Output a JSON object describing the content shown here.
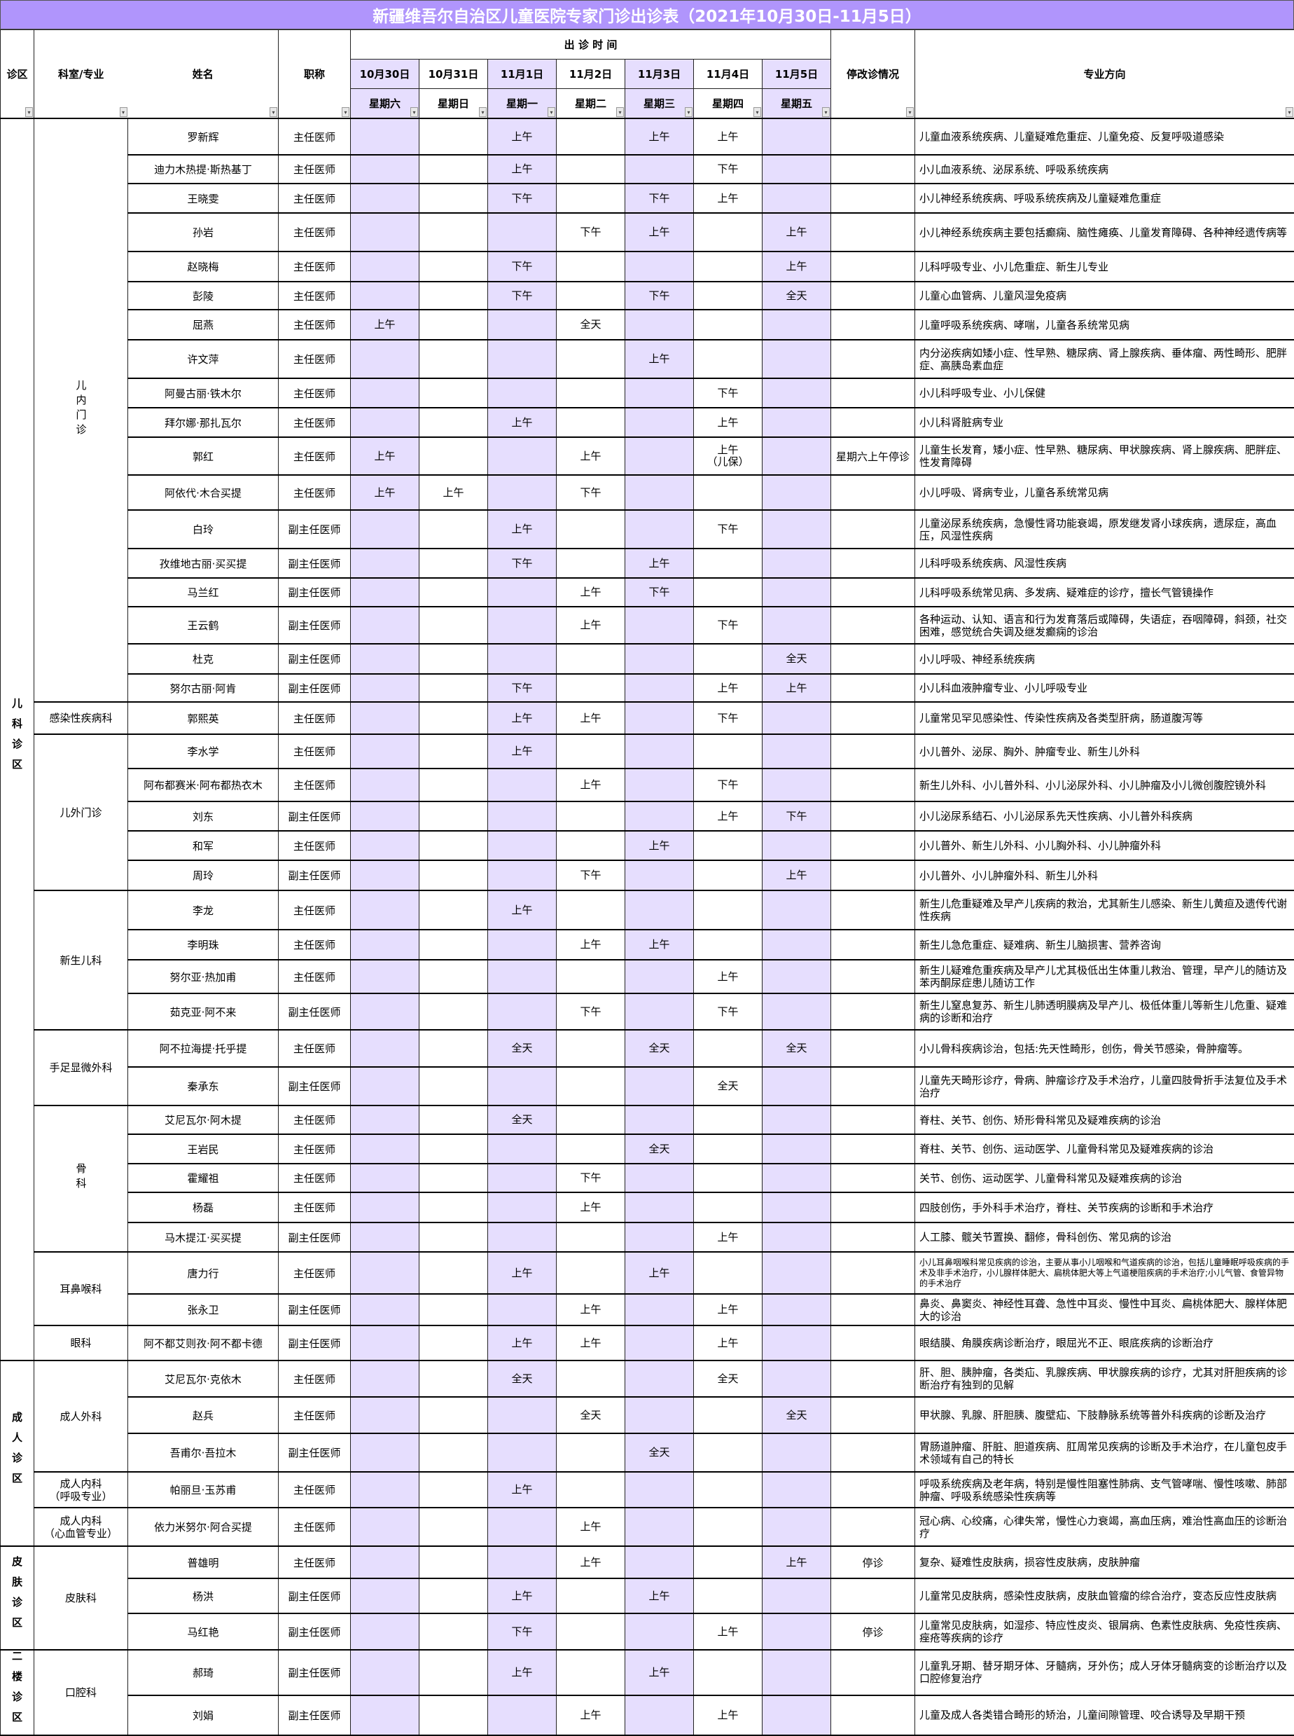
{
  "title": "新疆维吾尔自治区儿童医院专家门诊出诊表（2021年10月30日-11月5日）",
  "colors": {
    "title_bg": "#b095fc",
    "highlight_column": "#e6defe"
  },
  "header": {
    "zone": "诊区",
    "department": "科室/专业",
    "name": "姓名",
    "title": "职称",
    "visit_time": "出 诊 时 间",
    "dates": [
      "10月30日",
      "10月31日",
      "11月1日",
      "11月2日",
      "11月3日",
      "11月4日",
      "11月5日"
    ],
    "weekdays": [
      "星期六",
      "星期日",
      "星期一",
      "星期二",
      "星期三",
      "星期四",
      "星期五"
    ],
    "change": "停改诊情况",
    "specialty": "专业方向",
    "filter_icon": "dropdown-filter-icon"
  },
  "zones": [
    {
      "name": "儿科诊区",
      "departments": [
        {
          "name": "儿内门诊",
          "doctors": [
            {
              "name": "罗新辉",
              "title": "主任医师",
              "schedule": [
                "",
                "",
                "上午",
                "",
                "上午",
                "上午",
                ""
              ],
              "change": "",
              "specialty": "儿童血液系统疾病、儿童疑难危重症、儿童免疫、反复呼吸道感染"
            },
            {
              "name": "迪力木热提·斯热基丁",
              "title": "主任医师",
              "schedule": [
                "",
                "",
                "上午",
                "",
                "",
                "下午",
                ""
              ],
              "change": "",
              "specialty": "小儿血液系统、泌尿系统、呼吸系统疾病"
            },
            {
              "name": "王晓雯",
              "title": "主任医师",
              "schedule": [
                "",
                "",
                "下午",
                "",
                "下午",
                "上午",
                ""
              ],
              "change": "",
              "specialty": "小儿神经系统疾病、呼吸系统疾病及儿童疑难危重症"
            },
            {
              "name": "孙岩",
              "title": "主任医师",
              "schedule": [
                "",
                "",
                "",
                "下午",
                "上午",
                "",
                "上午"
              ],
              "change": "",
              "specialty": "小儿神经系统疾病主要包括癫痫、脑性瘫痪、儿童发育障碍、各种神经遗传病等"
            },
            {
              "name": "赵晓梅",
              "title": "主任医师",
              "schedule": [
                "",
                "",
                "下午",
                "",
                "",
                "",
                "上午"
              ],
              "change": "",
              "specialty": "儿科呼吸专业、小儿危重症、新生儿专业"
            },
            {
              "name": "彭陵",
              "title": "主任医师",
              "schedule": [
                "",
                "",
                "下午",
                "",
                "下午",
                "",
                "全天"
              ],
              "change": "",
              "specialty": "儿童心血管病、儿童风湿免疫病"
            },
            {
              "name": "屈燕",
              "title": "主任医师",
              "schedule": [
                "上午",
                "",
                "",
                "全天",
                "",
                "",
                ""
              ],
              "change": "",
              "specialty": "儿童呼吸系统疾病、哮喘，儿童各系统常见病"
            },
            {
              "name": "许文萍",
              "title": "主任医师",
              "schedule": [
                "",
                "",
                "",
                "",
                "上午",
                "",
                ""
              ],
              "change": "",
              "specialty": "内分泌疾病如矮小症、性早熟、糖尿病、肾上腺疾病、垂体瘤、两性畸形、肥胖症、高胰岛素血症"
            },
            {
              "name": "阿曼古丽·铁木尔",
              "title": "主任医师",
              "schedule": [
                "",
                "",
                "",
                "",
                "",
                "下午",
                ""
              ],
              "change": "",
              "specialty": "小儿科呼吸专业、小儿保健"
            },
            {
              "name": "拜尔娜·那扎瓦尔",
              "title": "主任医师",
              "schedule": [
                "",
                "",
                "上午",
                "",
                "",
                "上午",
                ""
              ],
              "change": "",
              "specialty": "小儿科肾脏病专业"
            },
            {
              "name": "郭红",
              "title": "主任医师",
              "schedule": [
                "上午",
                "",
                "",
                "上午",
                "",
                "上午\n（儿保）",
                ""
              ],
              "change": "星期六上午停诊",
              "specialty": "儿童生长发育，矮小症、性早熟、糖尿病、甲状腺疾病、肾上腺疾病、肥胖症、性发育障碍"
            },
            {
              "name": "阿依代·木合买提",
              "title": "主任医师",
              "schedule": [
                "上午",
                "上午",
                "",
                "下午",
                "",
                "",
                ""
              ],
              "change": "",
              "specialty": "小儿呼吸、肾病专业，儿童各系统常见病"
            },
            {
              "name": "白玲",
              "title": "副主任医师",
              "schedule": [
                "",
                "",
                "上午",
                "",
                "",
                "下午",
                ""
              ],
              "change": "",
              "specialty": "儿童泌尿系统疾病，急慢性肾功能衰竭，原发继发肾小球疾病，遗尿症，高血压，风湿性疾病"
            },
            {
              "name": "孜维地古丽·买买提",
              "title": "副主任医师",
              "schedule": [
                "",
                "",
                "下午",
                "",
                "上午",
                "",
                ""
              ],
              "change": "",
              "specialty": "儿科呼吸系统疾病、风湿性疾病"
            },
            {
              "name": "马兰红",
              "title": "副主任医师",
              "schedule": [
                "",
                "",
                "",
                "上午",
                "下午",
                "",
                ""
              ],
              "change": "",
              "specialty": "儿科呼吸系统常见病、多发病、疑难症的诊疗，擅长气管镜操作"
            },
            {
              "name": "王云鹤",
              "title": "副主任医师",
              "schedule": [
                "",
                "",
                "",
                "上午",
                "",
                "下午",
                ""
              ],
              "change": "",
              "specialty": "各种运动、认知、语言和行为发育落后或障碍，失语症，吞咽障碍，斜颈，社交困难，感觉统合失调及继发癫痫的诊治"
            },
            {
              "name": "杜克",
              "title": "副主任医师",
              "schedule": [
                "",
                "",
                "",
                "",
                "",
                "",
                "全天"
              ],
              "change": "",
              "specialty": "小儿呼吸、神经系统疾病"
            },
            {
              "name": "努尔古丽·阿肯",
              "title": "副主任医师",
              "schedule": [
                "",
                "",
                "下午",
                "",
                "",
                "上午",
                "上午"
              ],
              "change": "",
              "specialty": "小儿科血液肿瘤专业、小儿呼吸专业"
            }
          ]
        },
        {
          "name": "感染性疾病科",
          "doctors": [
            {
              "name": "郭熙英",
              "title": "主任医师",
              "schedule": [
                "",
                "",
                "上午",
                "上午",
                "",
                "下午",
                ""
              ],
              "change": "",
              "specialty": "儿童常见罕见感染性、传染性疾病及各类型肝病，肠道腹泻等"
            }
          ]
        },
        {
          "name": "儿外门诊",
          "doctors": [
            {
              "name": "李水学",
              "title": "主任医师",
              "schedule": [
                "",
                "",
                "上午",
                "",
                "",
                "",
                ""
              ],
              "change": "",
              "specialty": "小儿普外、泌尿、胸外、肿瘤专业、新生儿外科"
            },
            {
              "name": "阿布都赛米·阿布都热衣木",
              "title": "主任医师",
              "schedule": [
                "",
                "",
                "",
                "上午",
                "",
                "下午",
                ""
              ],
              "change": "",
              "specialty": "新生儿外科、小儿普外科、小儿泌尿外科、小儿肿瘤及小儿微创腹腔镜外科"
            },
            {
              "name": "刘东",
              "title": "副主任医师",
              "schedule": [
                "",
                "",
                "",
                "",
                "",
                "上午",
                "下午"
              ],
              "change": "",
              "specialty": "小儿泌尿系结石、小儿泌尿系先天性疾病、小儿普外科疾病"
            },
            {
              "name": "和军",
              "title": "主任医师",
              "schedule": [
                "",
                "",
                "",
                "",
                "上午",
                "",
                ""
              ],
              "change": "",
              "specialty": "小儿普外、新生儿外科、小儿胸外科、小儿肿瘤外科"
            },
            {
              "name": "周玲",
              "title": "副主任医师",
              "schedule": [
                "",
                "",
                "",
                "下午",
                "",
                "",
                "上午"
              ],
              "change": "",
              "specialty": "小儿普外、小儿肿瘤外科、新生儿外科"
            }
          ]
        },
        {
          "name": "新生儿科",
          "doctors": [
            {
              "name": "李龙",
              "title": "主任医师",
              "schedule": [
                "",
                "",
                "上午",
                "",
                "",
                "",
                ""
              ],
              "change": "",
              "specialty": "新生儿危重疑难及早产儿疾病的救治，尤其新生儿感染、新生儿黄疸及遗传代谢性疾病"
            },
            {
              "name": "李明珠",
              "title": "主任医师",
              "schedule": [
                "",
                "",
                "",
                "上午",
                "上午",
                "",
                ""
              ],
              "change": "",
              "specialty": "新生儿急危重症、疑难病、新生儿脑损害、营养咨询"
            },
            {
              "name": "努尔亚·热加甫",
              "title": "主任医师",
              "schedule": [
                "",
                "",
                "",
                "",
                "",
                "上午",
                ""
              ],
              "change": "",
              "specialty": "新生儿疑难危重疾病及早产儿尤其极低出生体重儿救治、管理，早产儿的随访及苯丙酮尿症患儿随访工作"
            },
            {
              "name": "茹克亚·阿不来",
              "title": "副主任医师",
              "schedule": [
                "",
                "",
                "",
                "下午",
                "",
                "下午",
                ""
              ],
              "change": "",
              "specialty": "新生儿窒息复苏、新生儿肺透明膜病及早产儿、极低体重儿等新生儿危重、疑难病的诊断和治疗"
            }
          ]
        },
        {
          "name": "手足显微外科",
          "doctors": [
            {
              "name": "阿不拉海提·托乎提",
              "title": "主任医师",
              "schedule": [
                "",
                "",
                "全天",
                "",
                "全天",
                "",
                "全天"
              ],
              "change": "",
              "specialty": "小儿骨科疾病诊治，包括:先天性畸形，创伤，骨关节感染，骨肿瘤等。"
            },
            {
              "name": "秦承东",
              "title": "副主任医师",
              "schedule": [
                "",
                "",
                "",
                "",
                "",
                "全天",
                ""
              ],
              "change": "",
              "specialty": "儿童先天畸形诊疗，骨病、肿瘤诊疗及手术治疗，儿童四肢骨折手法复位及手术治疗"
            }
          ]
        },
        {
          "name": "骨科",
          "doctors": [
            {
              "name": "艾尼瓦尔·阿木提",
              "title": "主任医师",
              "schedule": [
                "",
                "",
                "全天",
                "",
                "",
                "",
                ""
              ],
              "change": "",
              "specialty": "脊柱、关节、创伤、矫形骨科常见及疑难疾病的诊治"
            },
            {
              "name": "王岩民",
              "title": "主任医师",
              "schedule": [
                "",
                "",
                "",
                "",
                "全天",
                "",
                ""
              ],
              "change": "",
              "specialty": "脊柱、关节、创伤、运动医学、儿童骨科常见及疑难疾病的诊治"
            },
            {
              "name": "霍耀祖",
              "title": "主任医师",
              "schedule": [
                "",
                "",
                "",
                "下午",
                "",
                "",
                ""
              ],
              "change": "",
              "specialty": "关节、创伤、运动医学、儿童骨科常见及疑难疾病的诊治"
            },
            {
              "name": "杨磊",
              "title": "主任医师",
              "schedule": [
                "",
                "",
                "",
                "上午",
                "",
                "",
                ""
              ],
              "change": "",
              "specialty": "四肢创伤，手外科手术治疗，脊柱、关节疾病的诊断和手术治疗"
            },
            {
              "name": "马木提江·买买提",
              "title": "副主任医师",
              "schedule": [
                "",
                "",
                "",
                "",
                "",
                "上午",
                ""
              ],
              "change": "",
              "specialty": "人工膝、髋关节置换、翻修，骨科创伤、常见病的诊治"
            }
          ]
        },
        {
          "name": "耳鼻喉科",
          "doctors": [
            {
              "name": "唐力行",
              "title": "主任医师",
              "schedule": [
                "",
                "",
                "上午",
                "",
                "上午",
                "",
                ""
              ],
              "change": "",
              "specialty": "小儿耳鼻咽喉科常见疾病的诊治，主要从事小儿咽喉和气道疾病的诊治，包括儿童睡眠呼吸疾病的手术及非手术治疗，小儿腺样体肥大、扁桃体肥大等上气道梗阻疾病的手术治疗;小儿气管、食管异物的手术治疗"
            },
            {
              "name": "张永卫",
              "title": "副主任医师",
              "schedule": [
                "",
                "",
                "",
                "上午",
                "",
                "上午",
                ""
              ],
              "change": "",
              "specialty": "鼻炎、鼻窦炎、神经性耳聋、急性中耳炎、慢性中耳炎、扁桃体肥大、腺样体肥大的诊治"
            }
          ]
        },
        {
          "name": "眼科",
          "doctors": [
            {
              "name": "阿不都艾则孜·阿不都卡德",
              "title": "副主任医师",
              "schedule": [
                "",
                "",
                "上午",
                "上午",
                "",
                "上午",
                ""
              ],
              "change": "",
              "specialty": "眼结膜、角膜疾病诊断治疗，眼屈光不正、眼底疾病的诊断治疗"
            }
          ]
        }
      ]
    },
    {
      "name": "成人诊区",
      "departments": [
        {
          "name": "成人外科",
          "doctors": [
            {
              "name": "艾尼瓦尔·克依木",
              "title": "主任医师",
              "schedule": [
                "",
                "",
                "全天",
                "",
                "",
                "全天",
                ""
              ],
              "change": "",
              "specialty": "肝、胆、胰肿瘤，各类疝、乳腺疾病、甲状腺疾病的诊疗，尤其对肝胆疾病的诊断治疗有独到的见解"
            },
            {
              "name": "赵兵",
              "title": "主任医师",
              "schedule": [
                "",
                "",
                "",
                "全天",
                "",
                "",
                "全天"
              ],
              "change": "",
              "specialty": "甲状腺、乳腺、肝胆胰、腹壁疝、下肢静脉系统等普外科疾病的诊断及治疗"
            },
            {
              "name": "吾甫尔·吾拉木",
              "title": "副主任医师",
              "schedule": [
                "",
                "",
                "",
                "",
                "全天",
                "",
                ""
              ],
              "change": "",
              "specialty": "胃肠道肿瘤、肝脏、胆道疾病、肛周常见疾病的诊断及手术治疗，在儿童包皮手术领域有自己的特长"
            }
          ]
        },
        {
          "name": "成人内科\n（呼吸专业）",
          "doctors": [
            {
              "name": "帕丽旦·玉苏甫",
              "title": "主任医师",
              "schedule": [
                "",
                "",
                "上午",
                "",
                "",
                "",
                ""
              ],
              "change": "",
              "specialty": "呼吸系统疾病及老年病，特别是慢性阻塞性肺病、支气管哮喘、慢性咳嗽、肺部肿瘤、呼吸系统感染性疾病等"
            }
          ]
        },
        {
          "name": "成人内科\n（心血管专业）",
          "doctors": [
            {
              "name": "依力米努尔·阿合买提",
              "title": "主任医师",
              "schedule": [
                "",
                "",
                "",
                "上午",
                "",
                "",
                ""
              ],
              "change": "",
              "specialty": "冠心病、心绞痛，心律失常，慢性心力衰竭，高血压病，难治性高血压的诊断治疗"
            }
          ]
        }
      ]
    },
    {
      "name": "皮肤诊区",
      "departments": [
        {
          "name": "皮肤科",
          "doctors": [
            {
              "name": "普雄明",
              "title": "主任医师",
              "schedule": [
                "",
                "",
                "",
                "上午",
                "",
                "",
                "上午"
              ],
              "change": "停诊",
              "specialty": "复杂、疑难性皮肤病，损容性皮肤病，皮肤肿瘤"
            },
            {
              "name": "杨洪",
              "title": "副主任医师",
              "schedule": [
                "",
                "",
                "上午",
                "",
                "上午",
                "",
                ""
              ],
              "change": "",
              "specialty": "儿童常见皮肤病，感染性皮肤病，皮肤血管瘤的综合治疗，变态反应性皮肤病"
            },
            {
              "name": "马红艳",
              "title": "副主任医师",
              "schedule": [
                "",
                "",
                "下午",
                "",
                "",
                "上午",
                ""
              ],
              "change": "停诊",
              "specialty": "儿童常见皮肤病，如湿疹、特应性皮炎、银屑病、色素性皮肤病、免疫性疾病、痤疮等疾病的诊疗"
            }
          ]
        }
      ]
    },
    {
      "name": "二楼诊区",
      "departments": [
        {
          "name": "口腔科",
          "doctors": [
            {
              "name": "郝琦",
              "title": "副主任医师",
              "schedule": [
                "",
                "",
                "上午",
                "",
                "上午",
                "",
                ""
              ],
              "change": "",
              "specialty": "儿童乳牙期、替牙期牙体、牙髓病，牙外伤；成人牙体牙髓病变的诊断治疗以及口腔修复治疗"
            },
            {
              "name": "刘娟",
              "title": "副主任医师",
              "schedule": [
                "",
                "",
                "",
                "上午",
                "",
                "上午",
                ""
              ],
              "change": "",
              "specialty": "儿童及成人各类错合畸形的矫治，儿童间隙管理、咬合诱导及早期干预"
            }
          ]
        }
      ]
    }
  ]
}
